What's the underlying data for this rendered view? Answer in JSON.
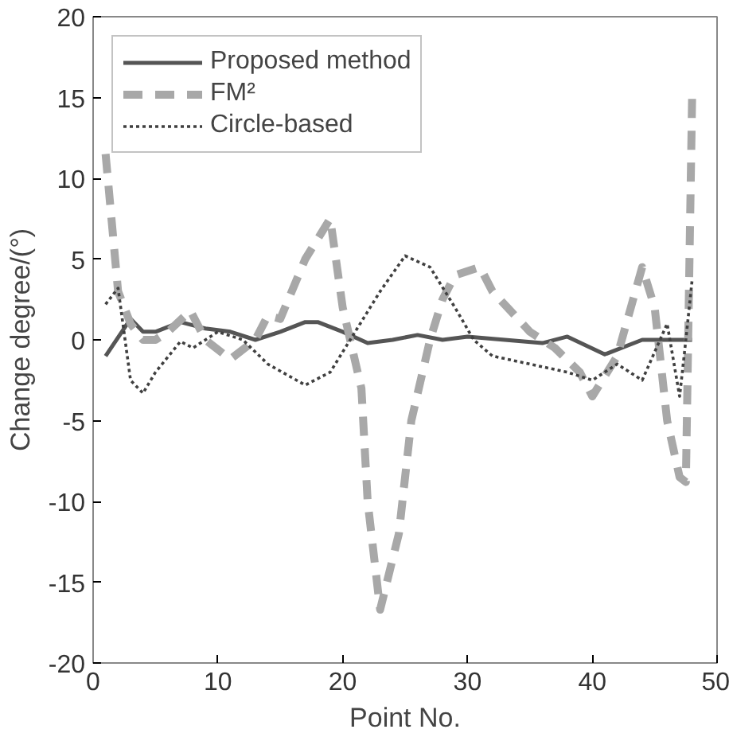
{
  "chart_data": {
    "type": "line",
    "xlabel": "Point No.",
    "ylabel": "Change degree/(°)",
    "xlim": [
      0,
      50
    ],
    "ylim": [
      -20,
      20
    ],
    "xticks": [
      0,
      10,
      20,
      30,
      40,
      50
    ],
    "yticks": [
      -20,
      -15,
      -10,
      -5,
      0,
      5,
      10,
      15,
      20
    ],
    "legend": "top left",
    "grid": false,
    "series": [
      {
        "name": "Proposed method",
        "color": "#555555",
        "line_style": "solid",
        "x": [
          1,
          3,
          4,
          5,
          7,
          9,
          11,
          13,
          15,
          17,
          18,
          20,
          22,
          24,
          26,
          28,
          30,
          33,
          36,
          38,
          41,
          44,
          48
        ],
        "values": [
          -1,
          1.3,
          0.5,
          0.5,
          1.1,
          0.7,
          0.5,
          0,
          0.5,
          1.1,
          1.1,
          0.5,
          -0.2,
          0,
          0.3,
          0,
          0.2,
          0,
          -0.2,
          0.2,
          -0.9,
          0,
          0
        ]
      },
      {
        "name": "FM²",
        "color": "#a8a8a8",
        "line_style": "dashed",
        "x": [
          1,
          2,
          3,
          4,
          5,
          6,
          7.8,
          9,
          11,
          13,
          14,
          15,
          17,
          19,
          20,
          21.5,
          22,
          23,
          24.5,
          25.5,
          27,
          28,
          29,
          31,
          32,
          35,
          37,
          39,
          40,
          42,
          44,
          45,
          46,
          47,
          47.5,
          48
        ],
        "values": [
          11.5,
          3,
          1,
          0,
          0,
          0.5,
          1.8,
          0,
          -1.2,
          0,
          1.5,
          1.3,
          5,
          7.5,
          2,
          -3,
          -10,
          -16.7,
          -12,
          -5,
          0,
          2.5,
          4,
          4.5,
          3,
          0.5,
          -0.5,
          -2,
          -3.5,
          -1,
          4.5,
          2,
          -5,
          -8.5,
          -8.8,
          15
        ]
      },
      {
        "name": "Circle-based",
        "color": "#404040",
        "line_style": "dotted",
        "x": [
          1,
          2,
          3,
          4,
          5,
          7,
          8,
          10,
          12,
          14,
          17,
          19,
          21,
          23,
          25,
          27,
          29,
          30.5,
          32,
          35,
          38,
          40,
          42,
          44,
          46,
          47,
          47.5,
          48
        ],
        "values": [
          2.2,
          3.2,
          -2.5,
          -3.3,
          -2,
          -0.1,
          -0.5,
          0.5,
          0,
          -1.5,
          -2.8,
          -2,
          0.5,
          3,
          5.2,
          4.5,
          2,
          0,
          -1,
          -1.5,
          -2,
          -2.5,
          -1.5,
          -2.5,
          1,
          -3.5,
          0,
          3.7
        ]
      }
    ]
  }
}
